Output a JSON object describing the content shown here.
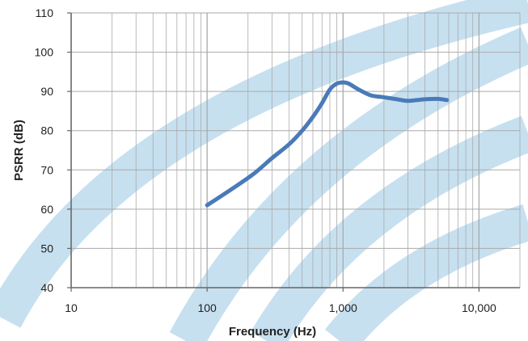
{
  "chart_data": {
    "type": "line",
    "title": "",
    "xlabel": "Frequency (Hz)",
    "ylabel": "PSRR (dB)",
    "xscale": "log",
    "xlim": [
      10,
      20000
    ],
    "ylim": [
      40,
      110
    ],
    "grid": true,
    "legend": "none",
    "x_tick_values": [
      10,
      100,
      1000,
      10000
    ],
    "x_tick_labels": [
      "10",
      "100",
      "1,000",
      "10,000"
    ],
    "y_tick_values": [
      40,
      50,
      60,
      70,
      80,
      90,
      100,
      110
    ],
    "y_tick_labels": [
      "40",
      "50",
      "60",
      "70",
      "80",
      "90",
      "100",
      "110"
    ],
    "series": [
      {
        "color": "#4a7ab8",
        "x": [
          100,
          150,
          220,
          300,
          400,
          500,
          600,
          700,
          800,
          900,
          1000,
          1100,
          1300,
          1600,
          2000,
          2500,
          3000,
          4000,
          5000,
          5800
        ],
        "y": [
          61,
          65,
          69,
          73,
          76.5,
          80,
          83.5,
          87,
          90.5,
          92,
          92.3,
          92,
          90.5,
          89,
          88.5,
          88,
          87.6,
          88,
          88.1,
          87.8
        ]
      }
    ]
  },
  "colors": {
    "background_arcs": "#c6e0f0",
    "grid": "#aaaaaa",
    "axis": "#666666",
    "line": "#4a7ab8"
  }
}
